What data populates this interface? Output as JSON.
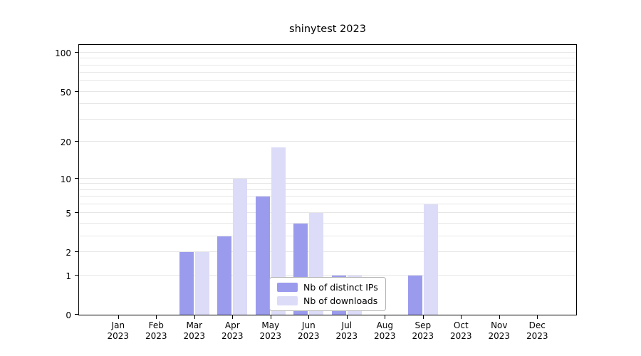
{
  "chart_data": {
    "type": "bar",
    "title": "shinytest 2023",
    "categories": [
      "Jan",
      "Feb",
      "Mar",
      "Apr",
      "May",
      "Jun",
      "Jul",
      "Aug",
      "Sep",
      "Oct",
      "Nov",
      "Dec"
    ],
    "year_label": "2023",
    "series": [
      {
        "name": "Nb of distinct IPs",
        "color": "#9b9bee",
        "values": [
          0,
          0,
          2,
          3,
          7,
          4,
          1,
          0,
          1,
          0,
          0,
          0
        ]
      },
      {
        "name": "Nb of downloads",
        "color": "#dcdcf8",
        "values": [
          0,
          0,
          2,
          10,
          18,
          5,
          1,
          0,
          6,
          0,
          0,
          0
        ]
      }
    ],
    "yscale": "log1p",
    "ylim": [
      0,
      115
    ],
    "ytick_values": [
      0,
      1,
      2,
      5,
      10,
      20,
      50,
      100
    ],
    "ytick_labels": [
      "0",
      "1",
      "2",
      "5",
      "10",
      "20",
      "50",
      "100"
    ],
    "minor_gridlines": [
      1,
      2,
      3,
      4,
      5,
      6,
      7,
      8,
      9,
      10,
      20,
      30,
      40,
      50,
      60,
      70,
      80,
      90,
      100
    ],
    "grid": true,
    "legend_position": "bottom-center"
  },
  "legend": {
    "items": [
      {
        "label": "Nb of distinct IPs",
        "color": "#9b9bee"
      },
      {
        "label": "Nb of downloads",
        "color": "#dcdcf8"
      }
    ]
  }
}
